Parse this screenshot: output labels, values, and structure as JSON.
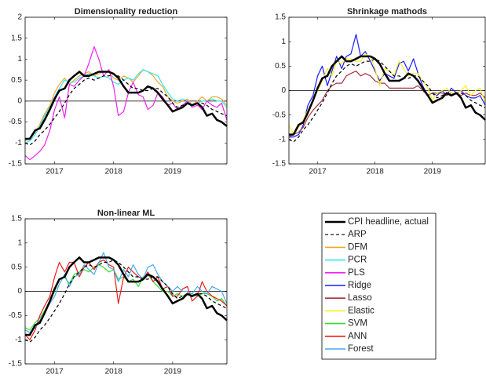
{
  "x": [
    2016.5,
    2016.58,
    2016.67,
    2016.75,
    2016.83,
    2016.92,
    2017,
    2017.08,
    2017.17,
    2017.25,
    2017.33,
    2017.42,
    2017.5,
    2017.58,
    2017.67,
    2017.75,
    2017.83,
    2017.92,
    2018,
    2018.08,
    2018.17,
    2018.25,
    2018.33,
    2018.42,
    2018.5,
    2018.58,
    2018.67,
    2018.75,
    2018.83,
    2018.92,
    2019,
    2019.08,
    2019.17,
    2019.25,
    2019.33,
    2019.42,
    2019.5,
    2019.58,
    2019.67,
    2019.75,
    2019.83,
    2019.92
  ],
  "shared_series": [
    {
      "name": "CPI headline, actual",
      "color": "#000000",
      "width": 2.5,
      "dashed": false,
      "values": [
        -0.9,
        -0.9,
        -0.7,
        -0.65,
        -0.45,
        -0.2,
        0.05,
        0.25,
        0.3,
        0.5,
        0.6,
        0.7,
        0.6,
        0.6,
        0.65,
        0.7,
        0.7,
        0.7,
        0.65,
        0.55,
        0.35,
        0.2,
        0.2,
        0.2,
        0.25,
        0.35,
        0.3,
        0.2,
        0.05,
        -0.1,
        -0.25,
        -0.2,
        -0.15,
        -0.05,
        -0.1,
        -0.05,
        -0.15,
        -0.35,
        -0.3,
        -0.45,
        -0.5,
        -0.6
      ]
    },
    {
      "name": "ARP",
      "color": "#000000",
      "width": 1.2,
      "dashed": true,
      "values": [
        -1,
        -1.05,
        -0.95,
        -0.8,
        -0.7,
        -0.55,
        -0.4,
        -0.25,
        -0.05,
        0.15,
        0.3,
        0.4,
        0.5,
        0.55,
        0.5,
        0.55,
        0.6,
        0.6,
        0.65,
        0.6,
        0.5,
        0.4,
        0.3,
        0.3,
        0.25,
        0.25,
        0.3,
        0.3,
        0.2,
        0.1,
        -0.05,
        -0.15,
        -0.1,
        -0.05,
        -0.1,
        -0.05,
        -0.05,
        -0.1,
        -0.2,
        -0.25,
        -0.3,
        -0.35
      ]
    }
  ],
  "chart_data": [
    {
      "type": "line",
      "title": "Dimensionality reduction",
      "xlim": [
        2016.5,
        2019.92
      ],
      "ylim": [
        -1.5,
        2
      ],
      "xticks": [
        2017,
        2018,
        2019
      ],
      "yticks": [
        -1.5,
        -1,
        -0.5,
        0,
        0.5,
        1,
        1.5,
        2
      ],
      "series": [
        {
          "name": "DFM",
          "color": "#f0a830",
          "values": [
            -0.95,
            -0.9,
            -0.75,
            -0.55,
            -0.3,
            -0.1,
            0.2,
            0.4,
            0.55,
            0.4,
            0.5,
            0.6,
            0.65,
            0.7,
            0.6,
            0.65,
            0.7,
            0.7,
            0.55,
            0.5,
            0.6,
            0.55,
            0.45,
            0.6,
            0.75,
            0.7,
            0.6,
            0.45,
            0.35,
            0.1,
            0,
            -0.05,
            0,
            0.05,
            -0.1,
            0,
            0.1,
            0,
            0.1,
            0.1,
            0.05,
            -0.1
          ]
        },
        {
          "name": "PCR",
          "color": "#33e6f0",
          "values": [
            -1,
            -0.95,
            -0.8,
            -0.6,
            -0.35,
            -0.15,
            0.1,
            0.3,
            0.5,
            0.45,
            0.45,
            0.55,
            0.6,
            0.65,
            0.6,
            0.55,
            0.6,
            0.55,
            0.45,
            0.4,
            0.5,
            0.55,
            0.5,
            0.65,
            0.75,
            0.7,
            0.65,
            0.6,
            0.4,
            0.2,
            0.05,
            0,
            0.05,
            0,
            -0.1,
            -0.05,
            0,
            0,
            0.05,
            0,
            0,
            -0.15
          ]
        },
        {
          "name": "PLS",
          "color": "#ee22ee",
          "values": [
            -1.3,
            -1.4,
            -1.3,
            -1.2,
            -1.05,
            -0.7,
            -0.2,
            0.1,
            -0.4,
            0.4,
            0.35,
            0.5,
            0.6,
            0.9,
            1.3,
            1,
            0.6,
            0.75,
            0.35,
            -0.35,
            -0.25,
            0.2,
            0.45,
            0.15,
            0.1,
            -0.2,
            -0.1,
            0.2,
            0.1,
            -0.1,
            -0.05,
            -0.2,
            -0.1,
            0,
            -0.15,
            -0.1,
            -0.2,
            0,
            -0.1,
            -0.15,
            -0.05,
            -0.45
          ]
        }
      ]
    },
    {
      "type": "line",
      "title": "Shrinkage mathods",
      "xlim": [
        2016.5,
        2019.92
      ],
      "ylim": [
        -1.5,
        1.5
      ],
      "xticks": [
        2017,
        2018,
        2019
      ],
      "yticks": [
        -1.5,
        -1,
        -0.5,
        0,
        0.5,
        1,
        1.5
      ],
      "series": [
        {
          "name": "Ridge",
          "color": "#1a1aff",
          "values": [
            -0.95,
            -0.95,
            -0.9,
            -0.7,
            -0.3,
            -0.1,
            0.3,
            0.5,
            0.1,
            0.4,
            0.7,
            0.45,
            0.7,
            0.75,
            1.15,
            0.7,
            0.8,
            0.6,
            0.4,
            0.2,
            0.35,
            0.3,
            0.25,
            0.55,
            0.6,
            0.4,
            0.65,
            0.35,
            0.1,
            -0.1,
            -0.05,
            -0.1,
            0,
            -0.1,
            0.05,
            -0.05,
            0,
            -0.1,
            -0.15,
            -0.15,
            -0.1,
            -0.3
          ]
        },
        {
          "name": "Lasso",
          "color": "#a83240",
          "values": [
            -0.95,
            -0.9,
            -0.85,
            -0.75,
            -0.55,
            -0.4,
            -0.3,
            -0.2,
            0,
            0.1,
            0.15,
            0.15,
            0.3,
            0.35,
            0.4,
            0.3,
            0.35,
            0.3,
            0.2,
            0.15,
            0.15,
            0.05,
            0.05,
            0.05,
            0.05,
            0.05,
            0.05,
            0.1,
            0,
            -0.1,
            -0.05,
            -0.05,
            -0.05,
            -0.1,
            -0.05,
            -0.05,
            -0.1,
            -0.05,
            -0.1,
            -0.1,
            -0.05,
            -0.15
          ]
        },
        {
          "name": "Elastic",
          "color": "#f5f020",
          "values": [
            -0.7,
            -0.9,
            -0.75,
            -0.6,
            -0.4,
            -0.2,
            0,
            0.2,
            0.45,
            0.3,
            0.6,
            0.55,
            0.65,
            0.65,
            0.6,
            0.6,
            0.75,
            0.7,
            0.45,
            0.1,
            0.45,
            0.4,
            0.3,
            0.6,
            0.45,
            0.3,
            0.35,
            0.35,
            0.2,
            0.05,
            -0.2,
            -0.05,
            0,
            0.05,
            -0.05,
            -0.05,
            0,
            0.1,
            -0.1,
            0,
            0.05,
            -0.25
          ]
        }
      ]
    },
    {
      "type": "line",
      "title": "Non-linear ML",
      "xlim": [
        2016.5,
        2019.92
      ],
      "ylim": [
        -1.5,
        1.5
      ],
      "xticks": [
        2017,
        2018,
        2019
      ],
      "yticks": [
        -1.5,
        -1,
        -0.5,
        0,
        0.5,
        1,
        1.5
      ],
      "series": [
        {
          "name": "SVM",
          "color": "#33dd33",
          "values": [
            -0.75,
            -0.8,
            -0.65,
            -0.55,
            -0.4,
            -0.2,
            0,
            0.25,
            0.3,
            0.15,
            0.35,
            0.4,
            0.45,
            0.4,
            0.5,
            0.55,
            0.5,
            0.4,
            0.45,
            0.25,
            0.3,
            0.2,
            0.25,
            0.1,
            0.3,
            0.35,
            0.2,
            0.1,
            0,
            0,
            -0.1,
            -0.05,
            -0.1,
            -0.05,
            -0.05,
            -0.1,
            -0.05,
            -0.05,
            -0.1,
            -0.2,
            -0.15,
            -0.3
          ]
        },
        {
          "name": "ANN",
          "color": "#ee1a1a",
          "values": [
            -0.9,
            -1,
            -0.8,
            -0.5,
            -0.3,
            -0.1,
            0.3,
            0.6,
            0.4,
            0.6,
            0.6,
            0.3,
            0.5,
            0.6,
            0.45,
            0.6,
            0.65,
            0.55,
            0.5,
            -0.25,
            0.3,
            0.5,
            0.4,
            0.3,
            0.25,
            0.4,
            0.2,
            0.3,
            0.05,
            0.1,
            -0.1,
            -0.1,
            0.05,
            0.1,
            -0.2,
            -0.1,
            0.2,
            0,
            -0.1,
            -0.15,
            -0.2,
            -0.3
          ]
        },
        {
          "name": "Forest",
          "color": "#44aaee",
          "values": [
            -0.8,
            -0.85,
            -0.75,
            -0.6,
            -0.45,
            -0.25,
            -0.1,
            0.15,
            0.35,
            0.1,
            0.3,
            0.35,
            0.55,
            0.45,
            0.35,
            0.6,
            0.8,
            0.5,
            0.45,
            0.2,
            0.45,
            0.3,
            0.55,
            0.35,
            0.25,
            0.5,
            0.55,
            0.35,
            0.2,
            0.1,
            0,
            0.1,
            0,
            0,
            -0.05,
            0.1,
            0,
            -0.05,
            0.1,
            0.05,
            0,
            -0.25
          ]
        }
      ]
    }
  ]
}
